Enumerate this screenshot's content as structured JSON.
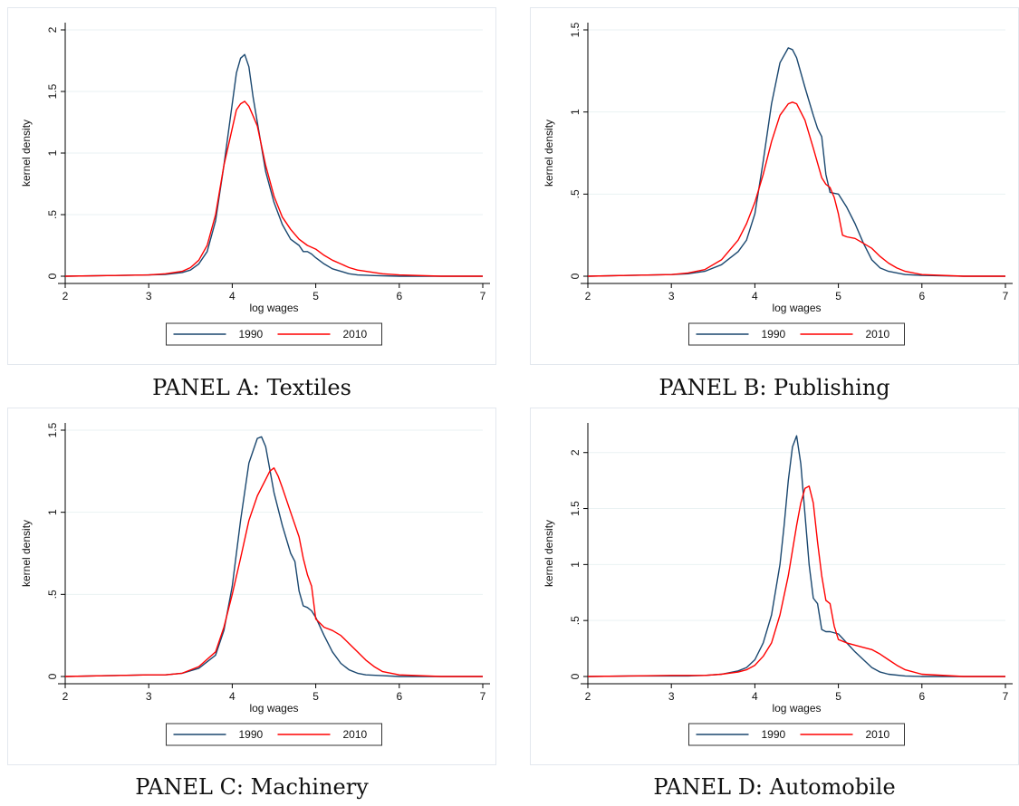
{
  "charts": [
    {
      "caption": "PANEL A: Textiles",
      "chart_data": {
        "type": "line",
        "title": "",
        "xlabel": "log wages",
        "ylabel": "kernel density",
        "xlim": [
          2,
          7
        ],
        "ylim": [
          0,
          2
        ],
        "xticks": [
          2,
          3,
          4,
          5,
          6,
          7
        ],
        "yticks": [
          0,
          0.5,
          1,
          1.5,
          2
        ],
        "ytick_labels": [
          "0",
          ".5",
          "1",
          "1.5",
          "2"
        ],
        "grid": true,
        "legend": "bottom",
        "series": [
          {
            "name": "1990",
            "color": "#1a476f",
            "x": [
              2,
              2.5,
              3,
              3.2,
              3.4,
              3.5,
              3.6,
              3.7,
              3.8,
              3.9,
              4.0,
              4.05,
              4.1,
              4.15,
              4.2,
              4.25,
              4.3,
              4.4,
              4.5,
              4.6,
              4.7,
              4.8,
              4.85,
              4.9,
              4.95,
              5.0,
              5.1,
              5.2,
              5.3,
              5.4,
              5.5,
              5.7,
              6.0,
              6.5,
              7.0
            ],
            "y": [
              0,
              0.005,
              0.01,
              0.015,
              0.03,
              0.05,
              0.1,
              0.2,
              0.45,
              0.9,
              1.4,
              1.65,
              1.77,
              1.8,
              1.7,
              1.45,
              1.25,
              0.85,
              0.6,
              0.42,
              0.3,
              0.25,
              0.2,
              0.2,
              0.18,
              0.15,
              0.1,
              0.06,
              0.04,
              0.02,
              0.01,
              0.005,
              0,
              0,
              0
            ]
          },
          {
            "name": "2010",
            "color": "#ff0000",
            "x": [
              2,
              2.5,
              3,
              3.2,
              3.4,
              3.5,
              3.6,
              3.7,
              3.8,
              3.9,
              4.0,
              4.05,
              4.1,
              4.15,
              4.2,
              4.25,
              4.3,
              4.4,
              4.5,
              4.6,
              4.7,
              4.8,
              4.9,
              5.0,
              5.1,
              5.2,
              5.3,
              5.4,
              5.5,
              5.6,
              5.7,
              5.8,
              6.0,
              6.5,
              7.0
            ],
            "y": [
              0,
              0.005,
              0.01,
              0.02,
              0.04,
              0.07,
              0.13,
              0.25,
              0.5,
              0.9,
              1.2,
              1.35,
              1.4,
              1.42,
              1.38,
              1.3,
              1.22,
              0.9,
              0.65,
              0.48,
              0.38,
              0.3,
              0.25,
              0.22,
              0.17,
              0.13,
              0.1,
              0.07,
              0.05,
              0.04,
              0.03,
              0.02,
              0.01,
              0,
              0
            ]
          }
        ]
      }
    },
    {
      "caption": "PANEL B: Publishing",
      "chart_data": {
        "type": "line",
        "title": "",
        "xlabel": "log wages",
        "ylabel": "kernel density",
        "xlim": [
          2,
          7
        ],
        "ylim": [
          0,
          1.5
        ],
        "xticks": [
          2,
          3,
          4,
          5,
          6,
          7
        ],
        "yticks": [
          0,
          0.5,
          1,
          1.5
        ],
        "ytick_labels": [
          "0",
          ".5",
          "1",
          "1.5"
        ],
        "grid": true,
        "legend": "bottom",
        "series": [
          {
            "name": "1990",
            "color": "#1a476f",
            "x": [
              2,
              2.5,
              3,
              3.2,
              3.4,
              3.6,
              3.8,
              3.9,
              4.0,
              4.1,
              4.2,
              4.3,
              4.4,
              4.45,
              4.5,
              4.6,
              4.7,
              4.75,
              4.8,
              4.85,
              4.9,
              5.0,
              5.1,
              5.2,
              5.3,
              5.4,
              5.5,
              5.6,
              5.8,
              6.0,
              6.5,
              7.0
            ],
            "y": [
              0,
              0.005,
              0.01,
              0.015,
              0.03,
              0.07,
              0.15,
              0.22,
              0.38,
              0.7,
              1.05,
              1.3,
              1.39,
              1.38,
              1.33,
              1.15,
              0.98,
              0.9,
              0.85,
              0.62,
              0.51,
              0.5,
              0.42,
              0.32,
              0.2,
              0.1,
              0.05,
              0.03,
              0.01,
              0.005,
              0,
              0
            ]
          },
          {
            "name": "2010",
            "color": "#ff0000",
            "x": [
              2,
              2.5,
              3,
              3.2,
              3.4,
              3.6,
              3.8,
              3.9,
              4.0,
              4.1,
              4.2,
              4.3,
              4.4,
              4.45,
              4.5,
              4.6,
              4.7,
              4.8,
              4.85,
              4.9,
              4.95,
              5.0,
              5.05,
              5.1,
              5.2,
              5.3,
              5.4,
              5.5,
              5.6,
              5.7,
              5.8,
              6.0,
              6.5,
              7.0
            ],
            "y": [
              0,
              0.005,
              0.01,
              0.02,
              0.04,
              0.1,
              0.22,
              0.32,
              0.45,
              0.62,
              0.82,
              0.98,
              1.05,
              1.06,
              1.05,
              0.95,
              0.78,
              0.6,
              0.56,
              0.54,
              0.48,
              0.38,
              0.25,
              0.24,
              0.23,
              0.2,
              0.17,
              0.12,
              0.08,
              0.05,
              0.03,
              0.01,
              0,
              0
            ]
          }
        ]
      }
    },
    {
      "caption": "PANEL C: Machinery",
      "chart_data": {
        "type": "line",
        "title": "",
        "xlabel": "log wages",
        "ylabel": "kernel density",
        "xlim": [
          2,
          7
        ],
        "ylim": [
          0,
          1.5
        ],
        "xticks": [
          2,
          3,
          4,
          5,
          6,
          7
        ],
        "yticks": [
          0,
          0.5,
          1,
          1.5
        ],
        "ytick_labels": [
          "0",
          ".5",
          "1",
          "1.5"
        ],
        "grid": true,
        "legend": "bottom",
        "series": [
          {
            "name": "1990",
            "color": "#1a476f",
            "x": [
              2,
              2.5,
              3,
              3.2,
              3.4,
              3.6,
              3.8,
              3.9,
              4.0,
              4.1,
              4.2,
              4.3,
              4.35,
              4.4,
              4.5,
              4.6,
              4.7,
              4.75,
              4.8,
              4.85,
              4.9,
              4.95,
              5.0,
              5.1,
              5.2,
              5.3,
              5.4,
              5.5,
              5.6,
              5.8,
              6.0,
              6.5,
              7.0
            ],
            "y": [
              0,
              0.005,
              0.01,
              0.01,
              0.02,
              0.05,
              0.13,
              0.28,
              0.55,
              0.95,
              1.3,
              1.45,
              1.46,
              1.4,
              1.12,
              0.92,
              0.75,
              0.7,
              0.52,
              0.43,
              0.42,
              0.4,
              0.36,
              0.25,
              0.15,
              0.08,
              0.04,
              0.02,
              0.01,
              0.005,
              0,
              0,
              0
            ]
          },
          {
            "name": "2010",
            "color": "#ff0000",
            "x": [
              2,
              2.5,
              3,
              3.2,
              3.4,
              3.6,
              3.8,
              3.9,
              4.0,
              4.1,
              4.2,
              4.3,
              4.4,
              4.45,
              4.5,
              4.55,
              4.6,
              4.7,
              4.8,
              4.85,
              4.9,
              4.95,
              5.0,
              5.1,
              5.2,
              5.3,
              5.4,
              5.5,
              5.6,
              5.7,
              5.8,
              6.0,
              6.5,
              7.0
            ],
            "y": [
              0,
              0.005,
              0.01,
              0.01,
              0.02,
              0.06,
              0.15,
              0.3,
              0.5,
              0.72,
              0.95,
              1.1,
              1.2,
              1.25,
              1.27,
              1.22,
              1.15,
              1.0,
              0.85,
              0.72,
              0.62,
              0.55,
              0.35,
              0.3,
              0.28,
              0.25,
              0.2,
              0.15,
              0.1,
              0.06,
              0.03,
              0.01,
              0,
              0
            ]
          }
        ]
      }
    },
    {
      "caption": "PANEL D: Automobile",
      "chart_data": {
        "type": "line",
        "title": "",
        "xlabel": "log wages",
        "ylabel": "kernel density",
        "xlim": [
          2,
          7
        ],
        "ylim": [
          0,
          2.2
        ],
        "xticks": [
          2,
          3,
          4,
          5,
          6,
          7
        ],
        "yticks": [
          0,
          0.5,
          1,
          1.5,
          2
        ],
        "ytick_labels": [
          "0",
          ".5",
          "1",
          "1.5",
          "2"
        ],
        "grid": true,
        "legend": "bottom",
        "series": [
          {
            "name": "1990",
            "color": "#1a476f",
            "x": [
              2,
              2.5,
              3,
              3.2,
              3.4,
              3.6,
              3.8,
              3.9,
              4.0,
              4.1,
              4.2,
              4.3,
              4.35,
              4.4,
              4.45,
              4.5,
              4.55,
              4.6,
              4.65,
              4.7,
              4.75,
              4.8,
              4.85,
              4.9,
              5.0,
              5.1,
              5.2,
              5.3,
              5.4,
              5.5,
              5.6,
              5.8,
              6.0,
              6.5,
              7.0
            ],
            "y": [
              0,
              0.005,
              0.005,
              0.005,
              0.01,
              0.02,
              0.05,
              0.08,
              0.15,
              0.3,
              0.55,
              1.0,
              1.35,
              1.75,
              2.05,
              2.15,
              1.9,
              1.45,
              1.0,
              0.7,
              0.65,
              0.42,
              0.4,
              0.4,
              0.38,
              0.3,
              0.22,
              0.15,
              0.08,
              0.04,
              0.02,
              0.005,
              0,
              0,
              0
            ]
          },
          {
            "name": "2010",
            "color": "#ff0000",
            "x": [
              2,
              2.5,
              3,
              3.2,
              3.4,
              3.6,
              3.8,
              3.9,
              4.0,
              4.1,
              4.2,
              4.3,
              4.4,
              4.5,
              4.55,
              4.6,
              4.65,
              4.7,
              4.75,
              4.8,
              4.85,
              4.9,
              4.95,
              5.0,
              5.1,
              5.2,
              5.3,
              5.4,
              5.5,
              5.6,
              5.7,
              5.8,
              6.0,
              6.5,
              7.0
            ],
            "y": [
              0,
              0.005,
              0.01,
              0.01,
              0.01,
              0.02,
              0.04,
              0.06,
              0.1,
              0.18,
              0.3,
              0.55,
              0.9,
              1.35,
              1.55,
              1.68,
              1.7,
              1.55,
              1.2,
              0.9,
              0.68,
              0.65,
              0.45,
              0.33,
              0.3,
              0.28,
              0.26,
              0.24,
              0.2,
              0.15,
              0.1,
              0.06,
              0.02,
              0,
              0
            ]
          }
        ]
      }
    }
  ]
}
